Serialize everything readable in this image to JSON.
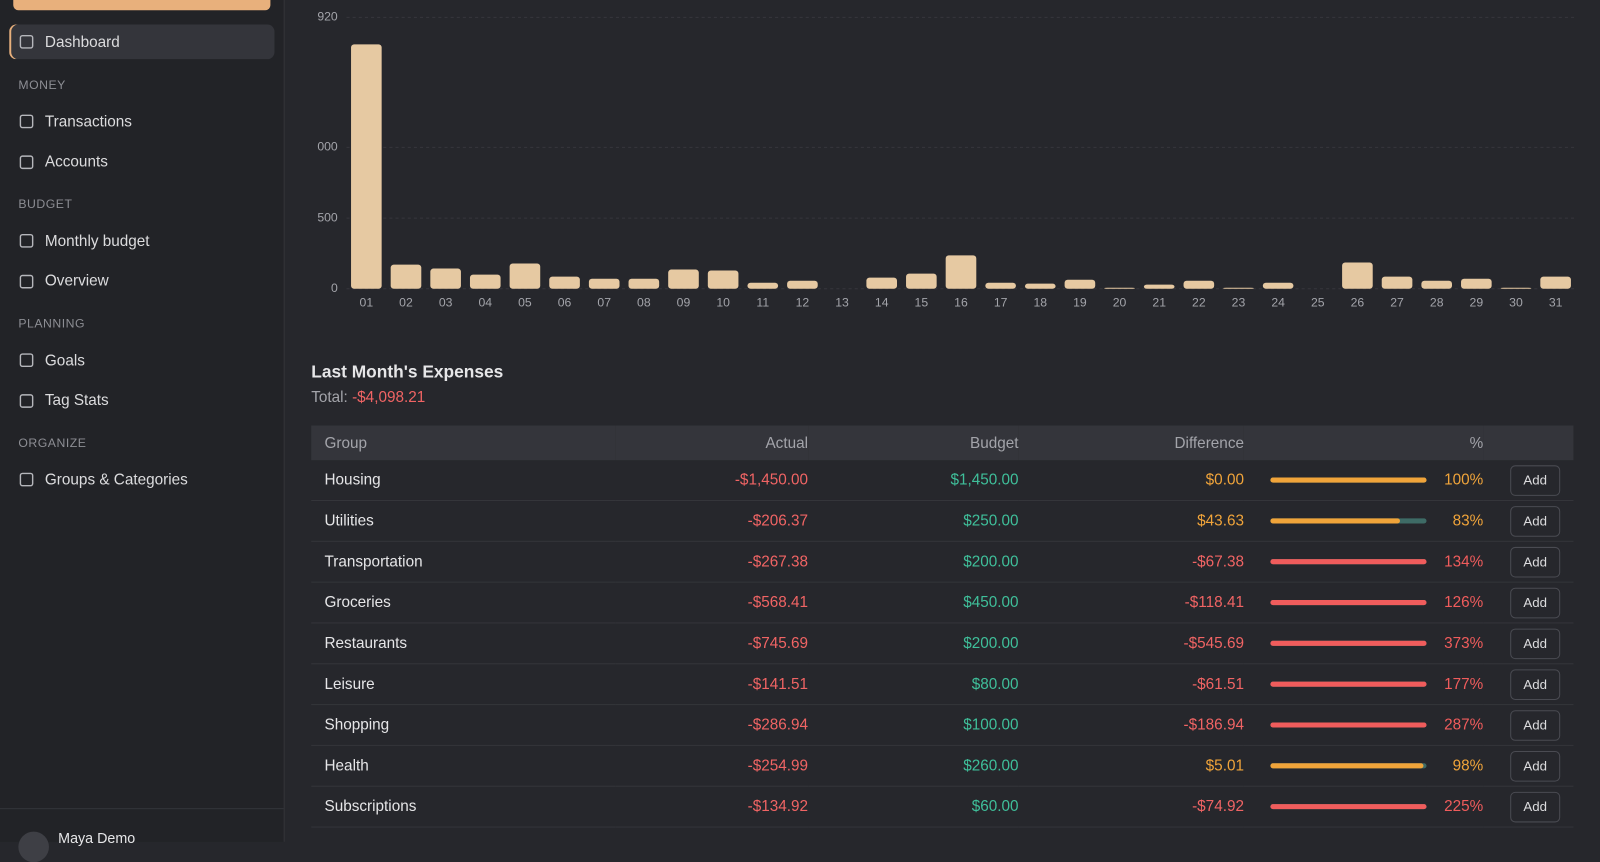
{
  "sidebar": {
    "top_item": "Dashboard",
    "sections": [
      {
        "heading": "MONEY",
        "items": [
          "Transactions",
          "Accounts"
        ]
      },
      {
        "heading": "BUDGET",
        "items": [
          "Monthly budget",
          "Overview"
        ]
      },
      {
        "heading": "PLANNING",
        "items": [
          "Goals",
          "Tag Stats"
        ]
      },
      {
        "heading": "ORGANIZE",
        "items": [
          "Groups & Categories"
        ]
      }
    ],
    "user": "Maya Demo"
  },
  "chart_data": {
    "type": "bar",
    "categories": [
      "01",
      "02",
      "03",
      "04",
      "05",
      "06",
      "07",
      "08",
      "09",
      "10",
      "11",
      "12",
      "13",
      "14",
      "15",
      "16",
      "17",
      "18",
      "19",
      "20",
      "21",
      "22",
      "23",
      "24",
      "25",
      "26",
      "27",
      "28",
      "29",
      "30",
      "31"
    ],
    "values": [
      1729,
      171,
      143,
      100,
      179,
      86,
      71,
      71,
      136,
      129,
      43,
      57,
      0,
      79,
      107,
      236,
      43,
      36,
      64,
      7,
      29,
      57,
      7,
      43,
      0,
      186,
      86,
      57,
      71,
      7,
      86
    ],
    "color": "#e6c9a2",
    "ylim": [
      0,
      1920
    ],
    "yticks": [
      0,
      500,
      {
        "value": 1000,
        "label": "000"
      },
      {
        "value": 1920,
        "label": "920"
      }
    ],
    "grid": true
  },
  "expenses": {
    "title": "Last Month's Expenses",
    "total_label": "Total:",
    "total": "-$4,098.21",
    "columns": [
      "Group",
      "Actual",
      "Budget",
      "Difference",
      "%"
    ],
    "button": "Add",
    "under_color": "#f0a43a",
    "over_color": "#f05c5c",
    "rows": [
      {
        "group": "Housing",
        "actual": "-$1,450.00",
        "budget": "$1,450.00",
        "difference": "$0.00",
        "percent": {
          "value": 100,
          "label": "100%"
        }
      },
      {
        "group": "Utilities",
        "actual": "-$206.37",
        "budget": "$250.00",
        "difference": "$43.63",
        "percent": {
          "value": 83,
          "label": "83%"
        }
      },
      {
        "group": "Transportation",
        "actual": "-$267.38",
        "budget": "$200.00",
        "difference": "-$67.38",
        "percent": {
          "value": 134,
          "label": "134%"
        }
      },
      {
        "group": "Groceries",
        "actual": "-$568.41",
        "budget": "$450.00",
        "difference": "-$118.41",
        "percent": {
          "value": 126,
          "label": "126%"
        }
      },
      {
        "group": "Restaurants",
        "actual": "-$745.69",
        "budget": "$200.00",
        "difference": "-$545.69",
        "percent": {
          "value": 373,
          "label": "373%"
        }
      },
      {
        "group": "Leisure",
        "actual": "-$141.51",
        "budget": "$80.00",
        "difference": "-$61.51",
        "percent": {
          "value": 177,
          "label": "177%"
        }
      },
      {
        "group": "Shopping",
        "actual": "-$286.94",
        "budget": "$100.00",
        "difference": "-$186.94",
        "percent": {
          "value": 287,
          "label": "287%"
        }
      },
      {
        "group": "Health",
        "actual": "-$254.99",
        "budget": "$260.00",
        "difference": "$5.01",
        "percent": {
          "value": 98,
          "label": "98%"
        }
      },
      {
        "group": "Subscriptions",
        "actual": "-$134.92",
        "budget": "$60.00",
        "difference": "-$74.92",
        "percent": {
          "value": 225,
          "label": "225%"
        }
      }
    ]
  }
}
